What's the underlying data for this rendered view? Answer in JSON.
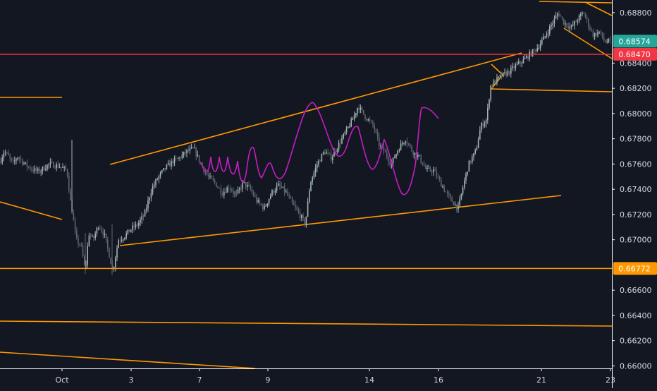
{
  "chart_data": {
    "type": "candlestick",
    "y_axis": {
      "ticks": [
        "0.68800",
        "0.68400",
        "0.68200",
        "0.68000",
        "0.67800",
        "0.67600",
        "0.67400",
        "0.67200",
        "0.67000",
        "0.66600",
        "0.66400",
        "0.66200",
        "0.66000"
      ],
      "tick_values": [
        0.688,
        0.684,
        0.682,
        0.68,
        0.678,
        0.676,
        0.674,
        0.672,
        0.67,
        0.666,
        0.664,
        0.662,
        0.66
      ],
      "range": [
        0.6598,
        0.689
      ]
    },
    "x_axis": {
      "ticks": [
        "Oct",
        "3",
        "7",
        "9",
        "14",
        "16",
        "21",
        "23"
      ],
      "range": [
        "Sep 26",
        "Oct 23"
      ]
    },
    "price_labels": [
      {
        "text": "0.68574",
        "value": 0.68574,
        "color": "#26a69a"
      },
      {
        "text": "0.68470",
        "value": 0.6847,
        "color": "#f23645"
      },
      {
        "text": "0.66772",
        "value": 0.66772,
        "color": "#ff9800"
      }
    ],
    "horizontal_lines": [
      {
        "value": 0.6847,
        "color": "#f23645"
      },
      {
        "value": 0.66772,
        "color": "#ff9800"
      }
    ],
    "series": [
      {
        "name": "",
        "approx_close_path": [
          [
            0,
            0.6762
          ],
          [
            6,
            0.677
          ],
          [
            12,
            0.6766
          ],
          [
            18,
            0.676
          ],
          [
            25,
            0.6766
          ],
          [
            35,
            0.676
          ],
          [
            45,
            0.6756
          ],
          [
            55,
            0.6754
          ],
          [
            70,
            0.676
          ],
          [
            85,
            0.6758
          ],
          [
            95,
            0.6755
          ],
          [
            100,
            0.673
          ],
          [
            103,
            0.672
          ],
          [
            108,
            0.67
          ],
          [
            115,
            0.6695
          ],
          [
            121,
            0.6675
          ],
          [
            126,
            0.6705
          ],
          [
            132,
            0.67
          ],
          [
            140,
            0.6712
          ],
          [
            148,
            0.6704
          ],
          [
            155,
            0.6688
          ],
          [
            160,
            0.6675
          ],
          [
            168,
            0.67
          ],
          [
            175,
            0.6702
          ],
          [
            185,
            0.6708
          ],
          [
            195,
            0.6712
          ],
          [
            205,
            0.672
          ],
          [
            215,
            0.674
          ],
          [
            225,
            0.675
          ],
          [
            235,
            0.6757
          ],
          [
            245,
            0.6762
          ],
          [
            255,
            0.6765
          ],
          [
            265,
            0.677
          ],
          [
            275,
            0.6772
          ],
          [
            285,
            0.676
          ],
          [
            295,
            0.675
          ],
          [
            305,
            0.6745
          ],
          [
            315,
            0.6737
          ],
          [
            325,
            0.6742
          ],
          [
            335,
            0.6735
          ],
          [
            345,
            0.6745
          ],
          [
            355,
            0.674
          ],
          [
            365,
            0.673
          ],
          [
            375,
            0.6725
          ],
          [
            385,
            0.6737
          ],
          [
            395,
            0.6743
          ],
          [
            405,
            0.6738
          ],
          [
            415,
            0.6728
          ],
          [
            425,
            0.672
          ],
          [
            433,
            0.6712
          ],
          [
            440,
            0.6745
          ],
          [
            450,
            0.676
          ],
          [
            460,
            0.677
          ],
          [
            470,
            0.6765
          ],
          [
            480,
            0.6775
          ],
          [
            490,
            0.6785
          ],
          [
            500,
            0.6795
          ],
          [
            508,
            0.6806
          ],
          [
            515,
            0.68
          ],
          [
            522,
            0.6795
          ],
          [
            530,
            0.679
          ],
          [
            538,
            0.6775
          ],
          [
            545,
            0.677
          ],
          [
            555,
            0.676
          ],
          [
            565,
            0.6772
          ],
          [
            575,
            0.678
          ],
          [
            585,
            0.677
          ],
          [
            595,
            0.6765
          ],
          [
            605,
            0.6755
          ],
          [
            615,
            0.6755
          ],
          [
            625,
            0.6745
          ],
          [
            635,
            0.6735
          ],
          [
            645,
            0.6728
          ],
          [
            650,
            0.6725
          ],
          [
            658,
            0.6745
          ],
          [
            665,
            0.676
          ],
          [
            675,
            0.677
          ],
          [
            682,
            0.679
          ],
          [
            690,
            0.6795
          ],
          [
            696,
            0.6822
          ],
          [
            703,
            0.6826
          ],
          [
            712,
            0.683
          ],
          [
            722,
            0.6833
          ],
          [
            732,
            0.6838
          ],
          [
            742,
            0.6842
          ],
          [
            752,
            0.6847
          ],
          [
            762,
            0.6852
          ],
          [
            772,
            0.686
          ],
          [
            782,
            0.687
          ],
          [
            792,
            0.688
          ],
          [
            800,
            0.6872
          ],
          [
            810,
            0.6868
          ],
          [
            820,
            0.6875
          ],
          [
            828,
            0.688
          ],
          [
            835,
            0.687
          ],
          [
            842,
            0.6862
          ],
          [
            850,
            0.6865
          ],
          [
            858,
            0.6857
          ],
          [
            866,
            0.6857
          ]
        ]
      }
    ]
  }
}
